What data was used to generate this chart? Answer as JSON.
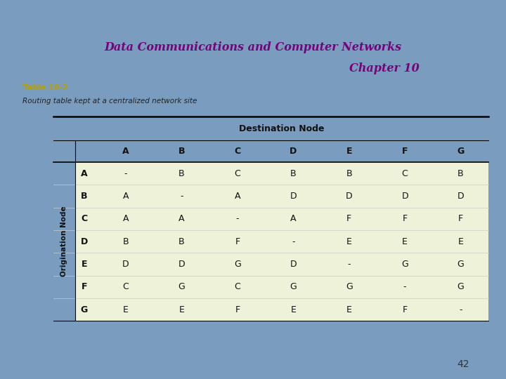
{
  "title_line1": "Data Communications and Computer Networks",
  "title_line2": "Chapter 10",
  "title_color": "#7b007b",
  "bg_color": "#7a9cbf",
  "table_bg": "#ffffff",
  "table_label": "Table 10-2",
  "table_label_color": "#b8a000",
  "table_subtitle": "Routing table kept at a centralized network site",
  "dest_header": "Destination Node",
  "orig_header": "Origination Node",
  "col_headers": [
    "A",
    "B",
    "C",
    "D",
    "E",
    "F",
    "G"
  ],
  "row_headers": [
    "A",
    "B",
    "C",
    "D",
    "E",
    "F",
    "G"
  ],
  "cell_data": [
    [
      "-",
      "B",
      "C",
      "B",
      "B",
      "C",
      "B"
    ],
    [
      "A",
      "-",
      "A",
      "D",
      "D",
      "D",
      "D"
    ],
    [
      "A",
      "A",
      "-",
      "A",
      "F",
      "F",
      "F"
    ],
    [
      "B",
      "B",
      "F",
      "-",
      "E",
      "E",
      "E"
    ],
    [
      "D",
      "D",
      "G",
      "D",
      "-",
      "G",
      "G"
    ],
    [
      "C",
      "G",
      "C",
      "G",
      "G",
      "-",
      "G"
    ],
    [
      "E",
      "E",
      "F",
      "E",
      "E",
      "F",
      "-"
    ]
  ],
  "cell_bg": "#eef2d8",
  "page_number": "42"
}
